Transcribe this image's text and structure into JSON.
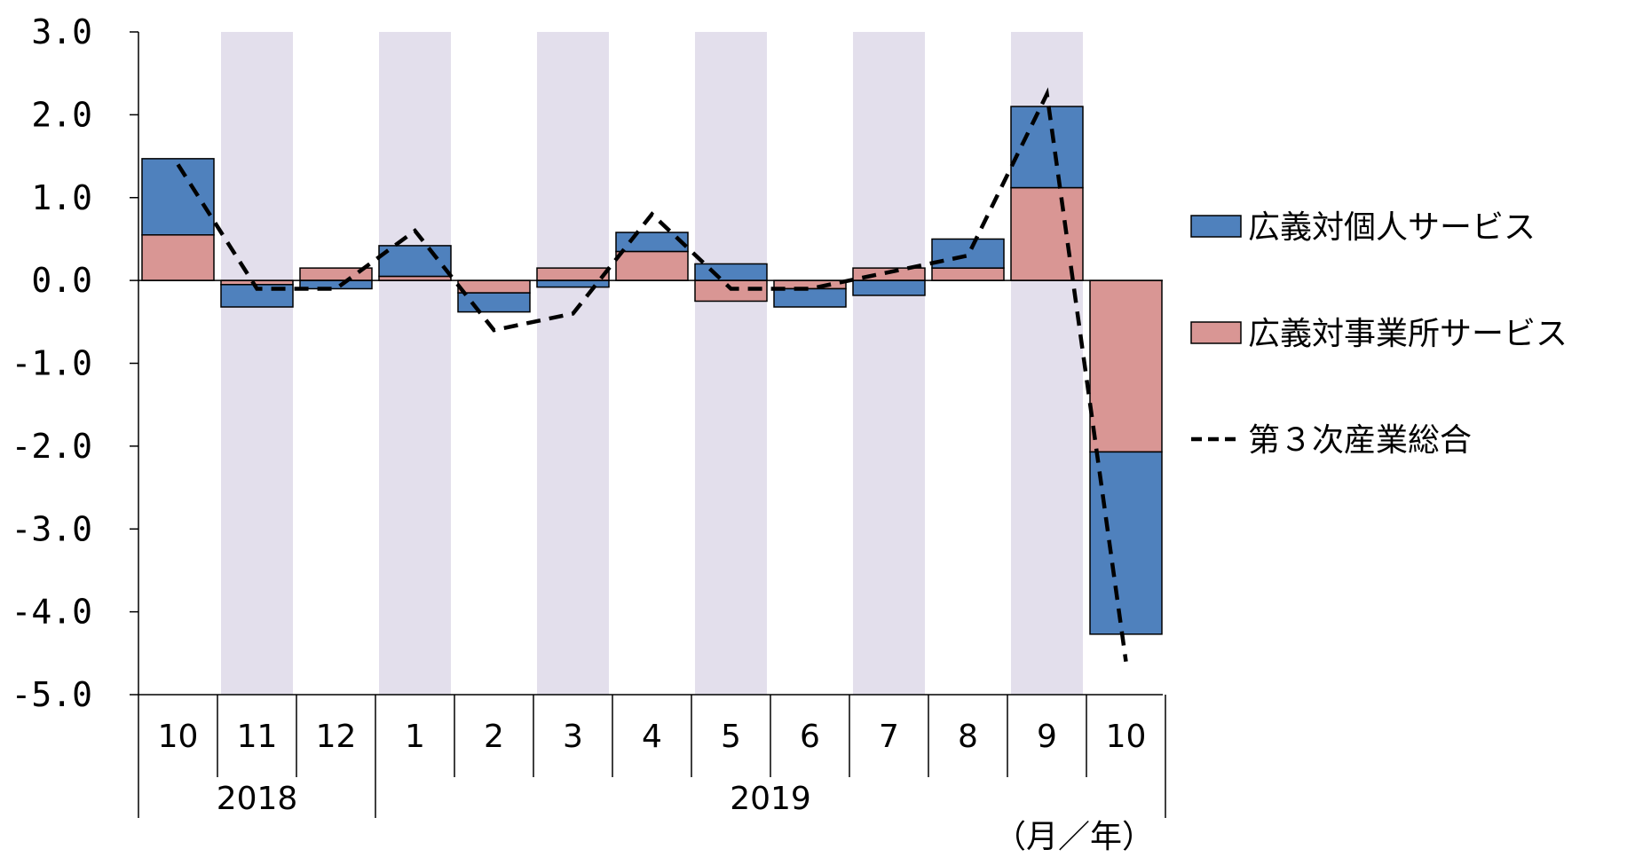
{
  "chart_data": {
    "type": "bar",
    "stacked": true,
    "categories": [
      "10",
      "11",
      "12",
      "1",
      "2",
      "3",
      "4",
      "5",
      "6",
      "7",
      "8",
      "9",
      "10"
    ],
    "year_groups": [
      {
        "label": "2018",
        "count": 3
      },
      {
        "label": "2019",
        "count": 10
      }
    ],
    "x_unit": "（月／年）",
    "ylim": [
      -5.0,
      3.0
    ],
    "yticks": [
      "3.0",
      "2.0",
      "1.0",
      "0.0",
      "-1.0",
      "-2.0",
      "-3.0",
      "-4.0",
      "-5.0"
    ],
    "ytick_values": [
      3,
      2,
      1,
      0,
      -1,
      -2,
      -3,
      -4,
      -5
    ],
    "shaded_categories": [
      1,
      3,
      5,
      7,
      9,
      11
    ],
    "shade_color": "#e3dfec",
    "series": [
      {
        "name": "広義対事業所サービス",
        "kind": "bar",
        "color": "#d99694",
        "values": [
          0.55,
          -0.05,
          0.15,
          0.05,
          -0.15,
          0.15,
          0.35,
          -0.25,
          -0.1,
          0.15,
          0.15,
          1.12,
          -2.07
        ]
      },
      {
        "name": "広義対個人サービス",
        "kind": "bar",
        "color": "#4f81bd",
        "values": [
          0.92,
          -0.27,
          -0.1,
          0.37,
          -0.23,
          -0.08,
          0.23,
          0.2,
          -0.22,
          -0.18,
          0.35,
          0.98,
          -2.2
        ]
      },
      {
        "name": "第３次産業総合",
        "kind": "line",
        "color": "#000000",
        "dash": "dashed",
        "values": [
          1.4,
          -0.1,
          -0.1,
          0.6,
          -0.6,
          -0.4,
          0.8,
          -0.1,
          -0.1,
          0.1,
          0.3,
          2.25,
          -4.6
        ]
      }
    ],
    "legend": [
      "広義対個人サービス",
      "広義対事業所サービス",
      "第３次産業総合"
    ],
    "legend_position": "right",
    "grid": false
  }
}
